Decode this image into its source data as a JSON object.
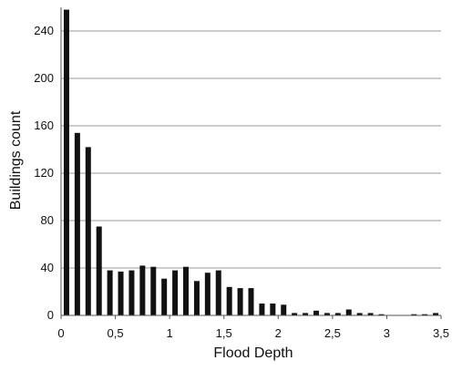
{
  "chart_data": {
    "type": "bar",
    "title": "",
    "xlabel": "Flood Depth",
    "ylabel": "Buildings count",
    "ylim": [
      0,
      260
    ],
    "xlim": [
      0,
      3.5
    ],
    "x_ticks": [
      0,
      0.5,
      1,
      1.5,
      2,
      2.5,
      3,
      3.5
    ],
    "x_tick_labels": [
      "0",
      "0,5",
      "1",
      "1,5",
      "2",
      "2,5",
      "3",
      "3,5"
    ],
    "y_ticks": [
      0,
      40,
      80,
      120,
      160,
      200,
      240
    ],
    "y_tick_labels": [
      "0",
      "40",
      "80",
      "120",
      "160",
      "200",
      "240"
    ],
    "grid": "horizontal",
    "bar_color": "#111111",
    "grid_color": "#9a9a9a",
    "x": [
      0.05,
      0.15,
      0.25,
      0.35,
      0.45,
      0.55,
      0.65,
      0.75,
      0.85,
      0.95,
      1.05,
      1.15,
      1.25,
      1.35,
      1.45,
      1.55,
      1.65,
      1.75,
      1.85,
      1.95,
      2.05,
      2.15,
      2.25,
      2.35,
      2.45,
      2.55,
      2.65,
      2.75,
      2.85,
      2.95,
      3.05,
      3.15,
      3.25,
      3.35,
      3.45
    ],
    "values": [
      258,
      154,
      142,
      75,
      38,
      37,
      38,
      42,
      41,
      31,
      38,
      41,
      29,
      36,
      38,
      24,
      23,
      23,
      10,
      10,
      9,
      2,
      2,
      4,
      2,
      2,
      5,
      2,
      2,
      1,
      0,
      0,
      1,
      1,
      2
    ]
  }
}
